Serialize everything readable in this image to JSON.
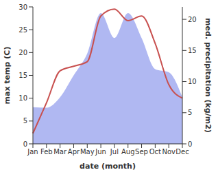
{
  "chart_data": {
    "type": "line_area",
    "categories": [
      "Jan",
      "Feb",
      "Mar",
      "Apr",
      "May",
      "Jun",
      "Jul",
      "Aug",
      "Sep",
      "Oct",
      "Nov",
      "Dec"
    ],
    "x_label": "date (month)",
    "y_label": "max temp (C)",
    "y2_label": "med. precipitation (kg/m2)",
    "ylim": [
      0,
      30
    ],
    "yticks": [
      0,
      5,
      10,
      15,
      20,
      25,
      30
    ],
    "y2lim": [
      0,
      22
    ],
    "y2ticks": [
      0,
      5,
      10,
      15,
      20
    ],
    "series": [
      {
        "name": "med. precipitation",
        "type": "area",
        "axis": "y2",
        "color": "#b0b8f2",
        "values": [
          5.9,
          5.8,
          7.5,
          11,
          14.5,
          21,
          17,
          21,
          17,
          12,
          11.5,
          7.5
        ]
      },
      {
        "name": "max temp",
        "type": "line",
        "axis": "y",
        "color": "#c8504f",
        "values": [
          2.3,
          9,
          16,
          17,
          18,
          28,
          29.5,
          27,
          28,
          22,
          13,
          10
        ]
      }
    ]
  }
}
